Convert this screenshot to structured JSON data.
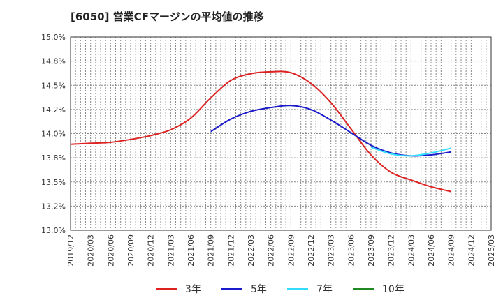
{
  "title": "[6050]  営業CFマージンの平均値の推移",
  "chart_data": {
    "type": "line",
    "title": "[6050]  営業CFマージンの平均値の推移",
    "xlabel": "",
    "ylabel": "",
    "ylim": [
      13.0,
      15.0
    ],
    "y_ticks": [
      "13.0%",
      "13.2%",
      "13.5%",
      "13.8%",
      "14.0%",
      "14.2%",
      "14.5%",
      "14.8%",
      "15.0%"
    ],
    "x_ticks": [
      "2019/12",
      "2020/03",
      "2020/06",
      "2020/09",
      "2020/12",
      "2021/03",
      "2021/06",
      "2021/09",
      "2021/12",
      "2022/03",
      "2022/06",
      "2022/09",
      "2022/12",
      "2023/03",
      "2023/06",
      "2023/09",
      "2023/12",
      "2024/03",
      "2024/06",
      "2024/09",
      "2024/12",
      "2025/03"
    ],
    "grid": true,
    "legend_position": "bottom",
    "series": [
      {
        "name": "3年",
        "color": "#dd2222",
        "points": [
          [
            "2019/12",
            13.89
          ],
          [
            "2020/03",
            13.9
          ],
          [
            "2020/06",
            13.91
          ],
          [
            "2020/09",
            13.94
          ],
          [
            "2020/12",
            13.98
          ],
          [
            "2021/03",
            14.04
          ],
          [
            "2021/06",
            14.16
          ],
          [
            "2021/09",
            14.37
          ],
          [
            "2021/12",
            14.55
          ],
          [
            "2022/03",
            14.62
          ],
          [
            "2022/06",
            14.64
          ],
          [
            "2022/09",
            14.63
          ],
          [
            "2022/12",
            14.52
          ],
          [
            "2023/03",
            14.32
          ],
          [
            "2023/06",
            14.05
          ],
          [
            "2023/09",
            13.78
          ],
          [
            "2023/12",
            13.6
          ],
          [
            "2024/03",
            13.52
          ],
          [
            "2024/06",
            13.45
          ],
          [
            "2024/09",
            13.4
          ]
        ]
      },
      {
        "name": "5年",
        "color": "#1a1acc",
        "points": [
          [
            "2021/09",
            14.02
          ],
          [
            "2021/12",
            14.15
          ],
          [
            "2022/03",
            14.23
          ],
          [
            "2022/06",
            14.27
          ],
          [
            "2022/09",
            14.29
          ],
          [
            "2022/12",
            14.25
          ],
          [
            "2023/03",
            14.14
          ],
          [
            "2023/06",
            14.01
          ],
          [
            "2023/09",
            13.88
          ],
          [
            "2023/12",
            13.8
          ],
          [
            "2024/03",
            13.77
          ],
          [
            "2024/06",
            13.78
          ],
          [
            "2024/09",
            13.81
          ]
        ]
      },
      {
        "name": "7年",
        "color": "#33ddff",
        "points": [
          [
            "2023/09",
            13.86
          ],
          [
            "2023/12",
            13.79
          ],
          [
            "2024/03",
            13.77
          ],
          [
            "2024/06",
            13.8
          ],
          [
            "2024/09",
            13.85
          ]
        ]
      },
      {
        "name": "10年",
        "color": "#228822",
        "points": []
      }
    ]
  }
}
